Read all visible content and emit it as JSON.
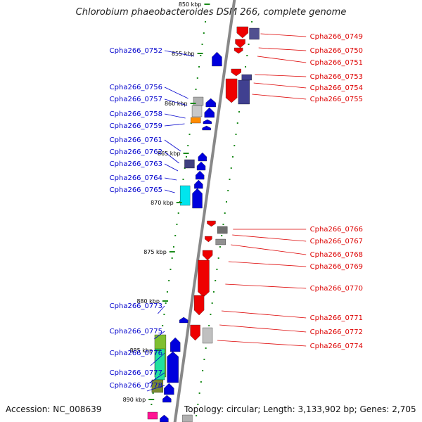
{
  "title": "Chlorobium phaeobacteroides DSM 266, complete genome",
  "footer": {
    "accession": "Accession: NC_008639",
    "stats": "Topology: circular; Length: 3,133,902 bp; Genes: 2,705"
  },
  "colors": {
    "forward": "#0000dd",
    "reverse": "#ee0000",
    "backbone": "#888888",
    "ticks": "#1a8a1a",
    "left_label": "#0000cc",
    "right_label": "#dd0000"
  },
  "ticks": [
    "850 kbp",
    "855 kbp",
    "860 kbp",
    "865 kbp",
    "870 kbp",
    "875 kbp",
    "880 kbp",
    "885 kbp",
    "890 kbp"
  ],
  "left_genes": [
    "Cpha266_0752",
    "Cpha266_0756",
    "Cpha266_0757",
    "Cpha266_0758",
    "Cpha266_0759",
    "Cpha266_0761",
    "Cpha266_0762",
    "Cpha266_0763",
    "Cpha266_0764",
    "Cpha266_0765",
    "Cpha266_0773",
    "Cpha266_0775",
    "Cpha266_0776",
    "Cpha266_0777",
    "Cpha266_0778"
  ],
  "right_genes": [
    "Cpha266_0749",
    "Cpha266_0750",
    "Cpha266_0751",
    "Cpha266_0753",
    "Cpha266_0754",
    "Cpha266_0755",
    "Cpha266_0766",
    "Cpha266_0767",
    "Cpha266_0768",
    "Cpha266_0769",
    "Cpha266_0770",
    "Cpha266_0771",
    "Cpha266_0772",
    "Cpha266_0774"
  ]
}
